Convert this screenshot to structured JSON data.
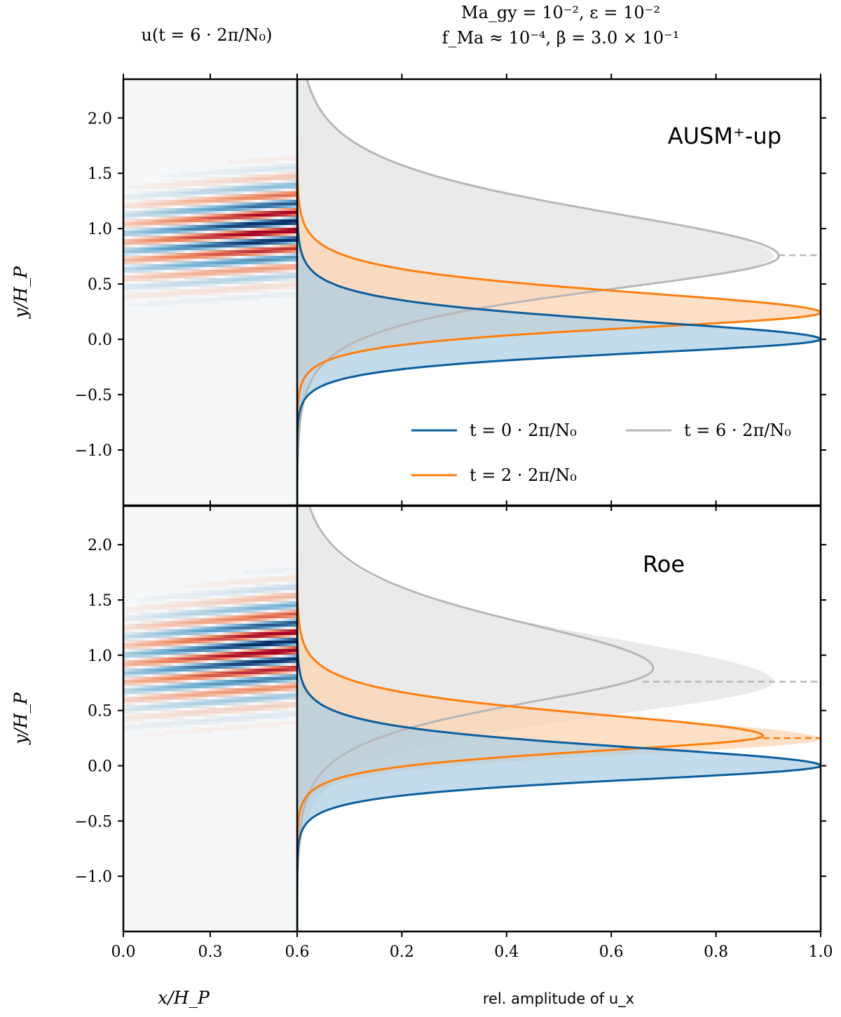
{
  "header": {
    "left_title": "u(t = 6 · 2π/N₀)",
    "right_title_line1": "Ma_gy = 10⁻², ε = 10⁻²",
    "right_title_line2": "f_Ma ≈ 10⁻⁴, β = 3.0 × 10⁻¹"
  },
  "colors": {
    "t0": "#0b5f9e",
    "t2": "#ff7f0e",
    "t6": "#b7b7b7",
    "t0_fill": "#a9cde4",
    "t2_fill": "#fcd3ae",
    "t6_fill": "#e6e6e6",
    "map_red": "#a50026",
    "map_blue": "#08306b"
  },
  "chart_data": [
    {
      "type": "heatmap",
      "panel": "top",
      "field": "u",
      "xlabel": "x/H_P",
      "ylabel": "y/H_P",
      "xlim": [
        0.0,
        0.6
      ],
      "ylim": [
        -1.5,
        2.35
      ],
      "xticks": [
        "0.0",
        "0.3",
        "0.6"
      ],
      "yticks": [
        "−1.0",
        "−0.5",
        "0.0",
        "0.5",
        "1.0",
        "1.5",
        "2.0"
      ],
      "pattern": {
        "center_y": 0.9,
        "tilt": 0.33,
        "wavelength": 0.165,
        "width": 0.42,
        "x_start": 0.07
      }
    },
    {
      "type": "line",
      "panel": "top",
      "method_label": "AUSM⁺-up",
      "xlabel": "rel. amplitude of u_x",
      "xlim": [
        0.0,
        1.0
      ],
      "ylim": [
        -1.5,
        2.35
      ],
      "xticks": [
        "0.2",
        "0.4",
        "0.6",
        "0.8",
        "1.0"
      ],
      "series": [
        {
          "name": "t = 0 · 2π/N₀",
          "key": "t0",
          "peak": 1.0,
          "y0": 0.0,
          "w_lo": 0.26,
          "w_hi": 0.34,
          "fill_peak": 1.0,
          "fill_y0": 0.0
        },
        {
          "name": "t = 2 · 2π/N₀",
          "key": "t2",
          "peak": 1.0,
          "y0": 0.24,
          "w_lo": 0.28,
          "w_hi": 0.38,
          "fill_peak": 1.0,
          "fill_y0": 0.24
        },
        {
          "name": "t = 6 · 2π/N₀",
          "key": "t6",
          "peak": 0.92,
          "y0": 0.75,
          "w_lo": 0.62,
          "w_hi": 0.82,
          "fill_peak": 0.91,
          "fill_y0": 0.75
        }
      ],
      "dashed_marks": [
        {
          "key": "t6",
          "y": 0.76,
          "x_from": 0.92,
          "x_to": 1.0
        }
      ]
    },
    {
      "type": "heatmap",
      "panel": "bottom",
      "field": "u",
      "xlabel": "x/H_P",
      "ylabel": "y/H_P",
      "xlim": [
        0.0,
        0.6
      ],
      "ylim": [
        -1.5,
        2.35
      ],
      "xticks": [
        "0.0",
        "0.3",
        "0.6"
      ],
      "yticks": [
        "−1.0",
        "−0.5",
        "0.0",
        "0.5",
        "1.0",
        "1.5",
        "2.0"
      ],
      "pattern": {
        "center_y": 0.95,
        "tilt": 0.36,
        "wavelength": 0.165,
        "width": 0.46,
        "x_start": 0.06
      }
    },
    {
      "type": "line",
      "panel": "bottom",
      "method_label": "Roe",
      "xlabel": "rel. amplitude of u_x",
      "xlim": [
        0.0,
        1.0
      ],
      "ylim": [
        -1.5,
        2.35
      ],
      "xticks": [
        "0.2",
        "0.4",
        "0.6",
        "0.8",
        "1.0"
      ],
      "series": [
        {
          "name": "t = 0 · 2π/N₀",
          "key": "t0",
          "peak": 1.0,
          "y0": 0.0,
          "w_lo": 0.26,
          "w_hi": 0.34,
          "fill_peak": 1.0,
          "fill_y0": 0.0
        },
        {
          "name": "t = 2 · 2π/N₀",
          "key": "t2",
          "peak": 0.89,
          "y0": 0.27,
          "w_lo": 0.28,
          "w_hi": 0.4,
          "fill_peak": 1.0,
          "fill_y0": 0.24
        },
        {
          "name": "t = 6 · 2π/N₀",
          "key": "t6",
          "peak": 0.68,
          "y0": 0.88,
          "w_lo": 0.64,
          "w_hi": 0.84,
          "fill_peak": 0.91,
          "fill_y0": 0.76
        }
      ],
      "dashed_marks": [
        {
          "key": "t6",
          "y": 0.76,
          "x_from": 0.66,
          "x_to": 1.0
        },
        {
          "key": "t2",
          "y": 0.25,
          "x_from": 0.89,
          "x_to": 1.0
        }
      ]
    }
  ],
  "legend": {
    "entries": [
      {
        "key": "t0",
        "label": "t = 0 · 2π/N₀"
      },
      {
        "key": "t2",
        "label": "t = 2 · 2π/N₀"
      },
      {
        "key": "t6",
        "label": "t = 6 · 2π/N₀"
      }
    ]
  }
}
